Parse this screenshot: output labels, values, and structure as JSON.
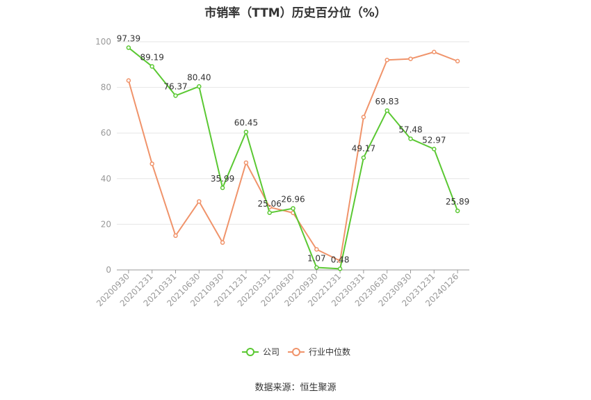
{
  "chart_data": {
    "type": "line",
    "title": "市销率（TTM）历史百分位（%）",
    "source": "数据来源：恒生聚源",
    "categories": [
      "20200930",
      "20201231",
      "20210331",
      "20210630",
      "20210930",
      "20211231",
      "20220331",
      "20220630",
      "20220930",
      "20221231",
      "20230331",
      "20230630",
      "20230930",
      "20231231",
      "20240126"
    ],
    "ylim": [
      0,
      100
    ],
    "yticks": [
      0,
      20,
      40,
      60,
      80,
      100
    ],
    "grid": true,
    "legend_position": "bottom",
    "series": [
      {
        "name": "公司",
        "color": "#5ac832",
        "values": [
          97.39,
          89.19,
          76.37,
          80.4,
          35.99,
          60.45,
          25.06,
          26.96,
          1.07,
          0.48,
          49.17,
          69.83,
          57.48,
          52.97,
          25.89
        ],
        "labels": [
          "97.39",
          "89.19",
          "76.37",
          "80.40",
          "35.99",
          "60.45",
          "25.06",
          "26.96",
          "1.07",
          "0.48",
          "49.17",
          "69.83",
          "57.48",
          "52.97",
          "25.89"
        ]
      },
      {
        "name": "行业中位数",
        "color": "#f0936a",
        "values": [
          83.0,
          46.5,
          15.0,
          30.0,
          12.0,
          47.0,
          27.5,
          25.0,
          9.0,
          4.0,
          67.0,
          92.0,
          92.5,
          95.5,
          91.5
        ]
      }
    ]
  }
}
